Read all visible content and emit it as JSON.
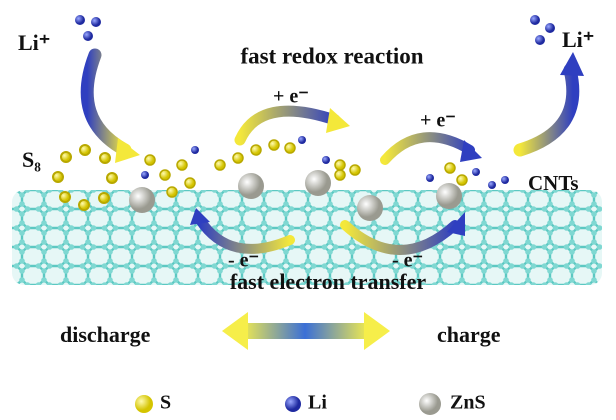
{
  "labels": {
    "li_left": "Li⁺",
    "li_right": "Li⁺",
    "redox": "fast redox reaction",
    "plus_e_1": "+ e⁻",
    "plus_e_2": "+ e⁻",
    "s8": "S₈",
    "cnts": "CNTs",
    "minus_e_1": "- e⁻",
    "minus_e_2": "- e⁻",
    "transfer": "fast electron transfer",
    "discharge": "discharge",
    "charge": "charge"
  },
  "legend": [
    "S",
    "Li",
    "ZnS"
  ]
}
